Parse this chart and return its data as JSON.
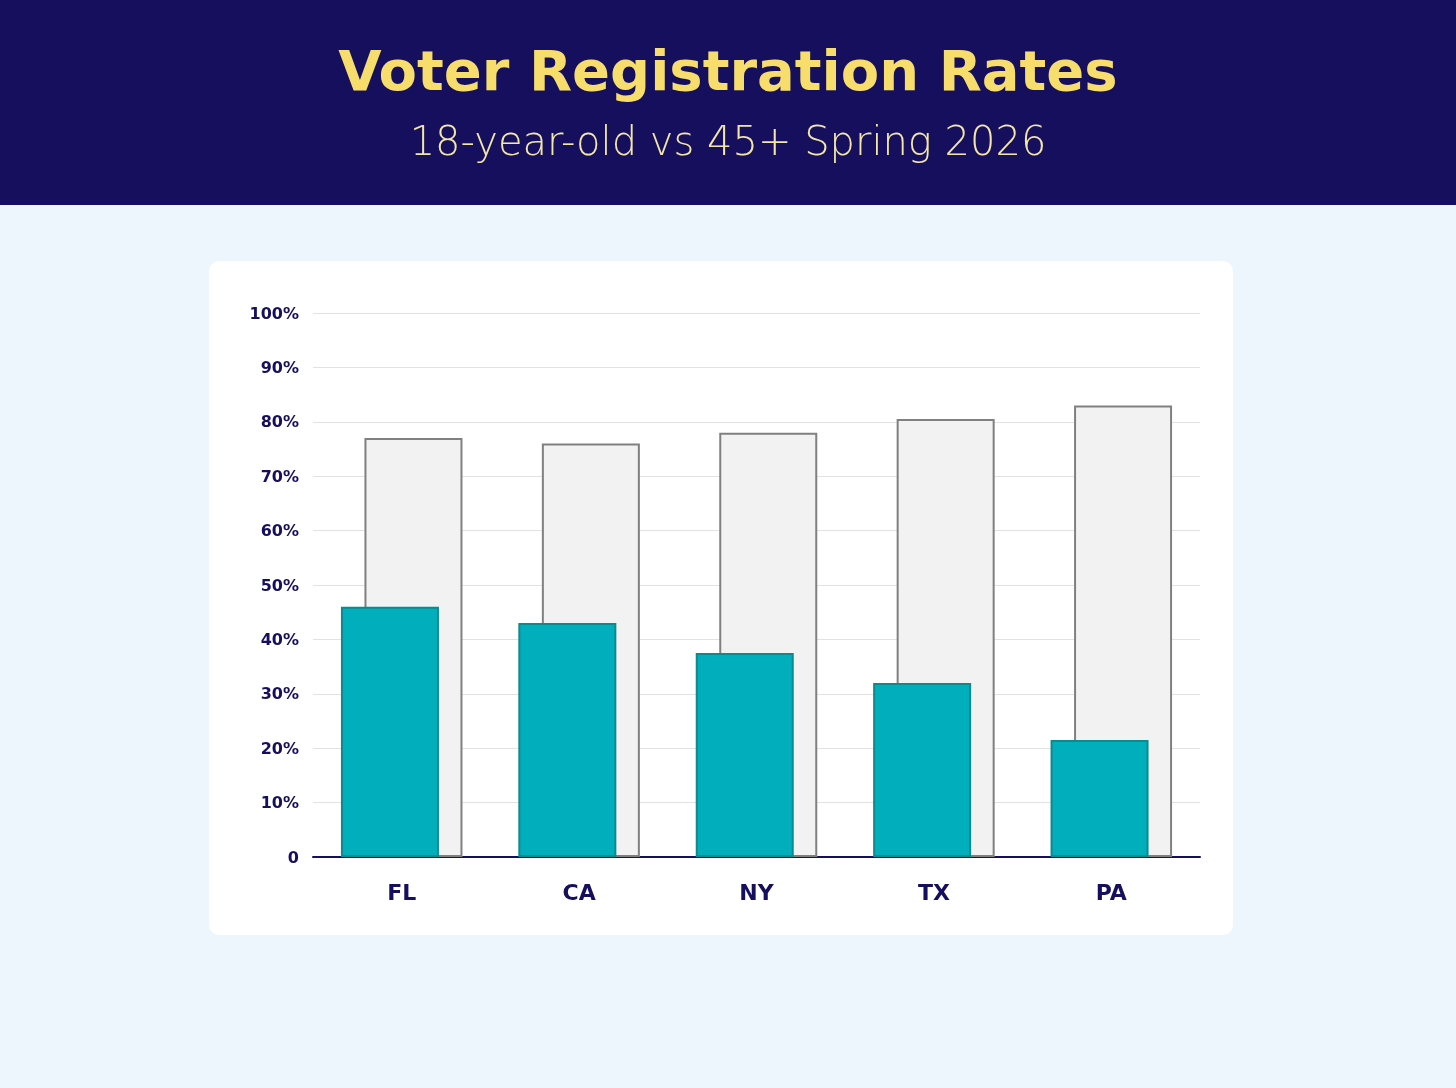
{
  "chart_data": {
    "type": "bar",
    "title": "Voter Registration Rates",
    "subtitle": "18-year-old vs 45+ Spring 2026",
    "categories": [
      "FL",
      "CA",
      "NY",
      "TX",
      "PA"
    ],
    "series": [
      {
        "color": "#00afbb",
        "values": [
          46,
          43,
          37.5,
          32,
          21.5
        ]
      },
      {
        "color": "#f2f2f2",
        "values": [
          77,
          76,
          78,
          80.5,
          83
        ]
      }
    ],
    "ylim": [
      0,
      100
    ],
    "yticks": [
      0,
      {
        "value": 10,
        "label": "10%"
      },
      {
        "value": 20,
        "label": "20%"
      },
      {
        "value": 30,
        "label": "30%"
      },
      {
        "value": 40,
        "label": "40%"
      },
      {
        "value": 50,
        "label": "50%"
      },
      {
        "value": 60,
        "label": "60%"
      },
      {
        "value": 70,
        "label": "70%"
      },
      {
        "value": 80,
        "label": "80%"
      },
      {
        "value": 90,
        "label": "90%"
      },
      {
        "value": 100,
        "label": "100%"
      }
    ],
    "grid": "y"
  }
}
